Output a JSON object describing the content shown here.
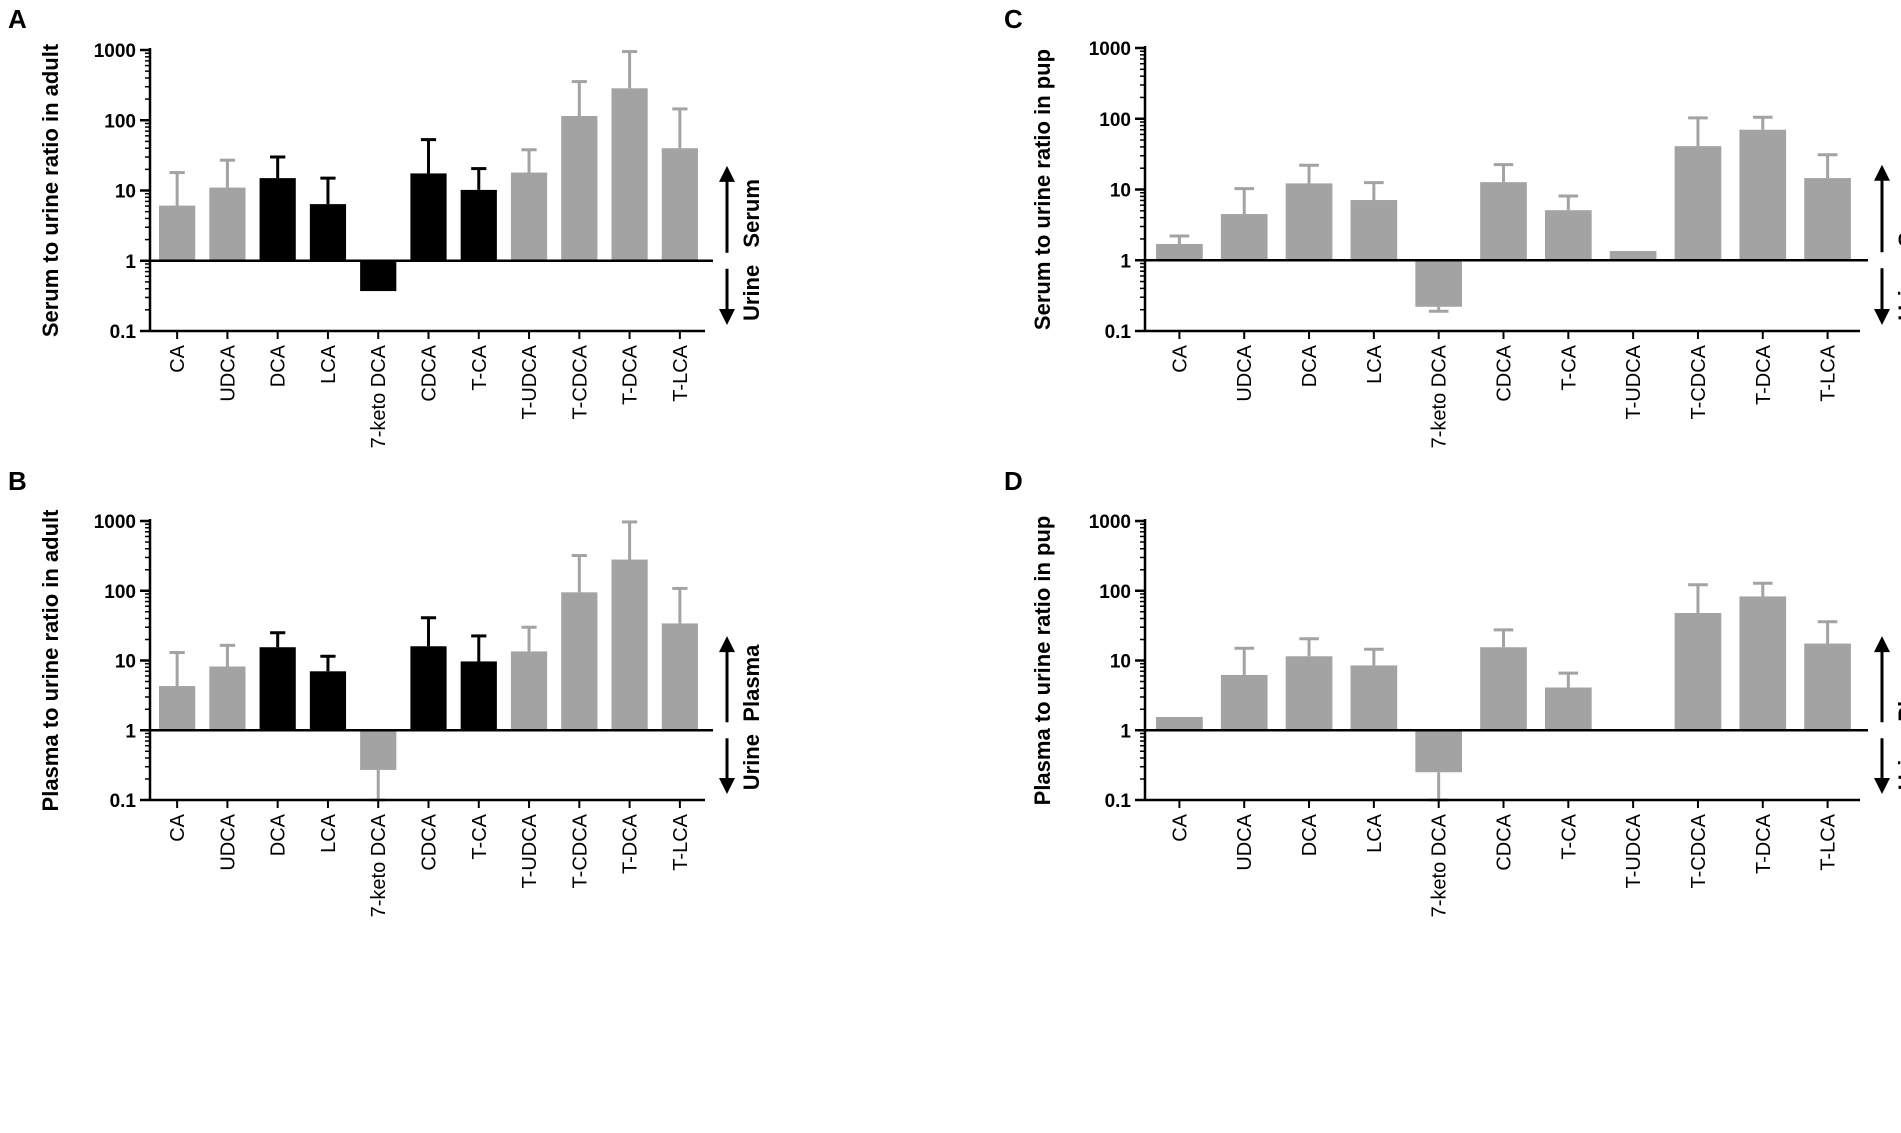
{
  "figure": {
    "colors": {
      "gray": "#a3a3a3",
      "black": "#000000",
      "axis": "#000000"
    }
  },
  "chart_data": [
    {
      "panel": "A",
      "type": "bar",
      "title": "",
      "ylabel": "Serum to urine ratio in adult",
      "yscale": "log",
      "ylim": [
        0.1,
        1000
      ],
      "yticks": [
        "0.1",
        "1",
        "10",
        "100",
        "1000"
      ],
      "direction_labels": {
        "up": "Serum",
        "down": "Urine"
      },
      "categories": [
        "CA",
        "UDCA",
        "DCA",
        "LCA",
        "7-keto DCA",
        "CDCA",
        "T-CA",
        "T-UDCA",
        "T-CDCA",
        "T-DCA",
        "T-LCA"
      ],
      "values": [
        6.1,
        11,
        15,
        6.4,
        0.37,
        17.5,
        10.2,
        18,
        115,
        285,
        40
      ],
      "errors": [
        18,
        27,
        30,
        15,
        null,
        53,
        20.5,
        38,
        355,
        950,
        145
      ],
      "colors": [
        "gray",
        "gray",
        "black",
        "black",
        "black",
        "black",
        "black",
        "gray",
        "gray",
        "gray",
        "gray"
      ]
    },
    {
      "panel": "B",
      "type": "bar",
      "title": "",
      "ylabel": "Plasma to urine ratio in adult",
      "yscale": "log",
      "ylim": [
        0.1,
        1000
      ],
      "yticks": [
        "0.1",
        "1",
        "10",
        "100",
        "1000"
      ],
      "direction_labels": {
        "up": "Plasma",
        "down": "Urine"
      },
      "categories": [
        "CA",
        "UDCA",
        "DCA",
        "LCA",
        "7-keto DCA",
        "CDCA",
        "T-CA",
        "T-UDCA",
        "T-CDCA",
        "T-DCA",
        "T-LCA"
      ],
      "values": [
        4.3,
        8.2,
        15.5,
        7,
        0.27,
        16,
        9.7,
        13.5,
        95,
        280,
        34
      ],
      "errors": [
        13,
        16.5,
        25,
        11.5,
        0.1,
        41,
        22.5,
        30,
        320,
        970,
        108
      ],
      "colors": [
        "gray",
        "gray",
        "black",
        "black",
        "gray",
        "black",
        "black",
        "gray",
        "gray",
        "gray",
        "gray"
      ]
    },
    {
      "panel": "C",
      "type": "bar",
      "title": "",
      "ylabel": "Serum to urine ratio in pup",
      "yscale": "log",
      "ylim": [
        0.1,
        1000
      ],
      "yticks": [
        "0.1",
        "1",
        "10",
        "100",
        "1000"
      ],
      "direction_labels": {
        "up": "Serum",
        "down": "Urine"
      },
      "categories": [
        "CA",
        "UDCA",
        "DCA",
        "LCA",
        "7-keto DCA",
        "CDCA",
        "T-CA",
        "T-UDCA",
        "T-CDCA",
        "T-DCA",
        "T-LCA"
      ],
      "values": [
        1.7,
        4.5,
        12.2,
        7.1,
        0.22,
        12.7,
        5.1,
        1.35,
        41,
        70,
        14.5
      ],
      "errors": [
        2.2,
        10.3,
        22,
        12.5,
        0.19,
        22.5,
        8.1,
        null,
        103,
        105,
        31
      ],
      "colors": [
        "gray",
        "gray",
        "gray",
        "gray",
        "gray",
        "gray",
        "gray",
        "gray",
        "gray",
        "gray",
        "gray"
      ]
    },
    {
      "panel": "D",
      "type": "bar",
      "title": "",
      "ylabel": "Plasma to urine ratio in pup",
      "yscale": "log",
      "ylim": [
        0.1,
        1000
      ],
      "yticks": [
        "0.1",
        "1",
        "10",
        "100",
        "1000"
      ],
      "direction_labels": {
        "up": "Plasma",
        "down": "Urine"
      },
      "categories": [
        "CA",
        "UDCA",
        "DCA",
        "LCA",
        "7-keto DCA",
        "CDCA",
        "T-CA",
        "T-UDCA",
        "T-CDCA",
        "T-DCA",
        "T-LCA"
      ],
      "values": [
        1.55,
        6.2,
        11.5,
        8.5,
        0.25,
        15.5,
        4.1,
        null,
        48,
        83,
        17.5
      ],
      "errors": [
        null,
        15,
        20.5,
        14.5,
        0.1,
        27.5,
        6.6,
        null,
        122,
        128,
        36
      ],
      "colors": [
        "gray",
        "gray",
        "gray",
        "gray",
        "gray",
        "gray",
        "gray",
        "gray",
        "gray",
        "gray",
        "gray"
      ]
    }
  ]
}
